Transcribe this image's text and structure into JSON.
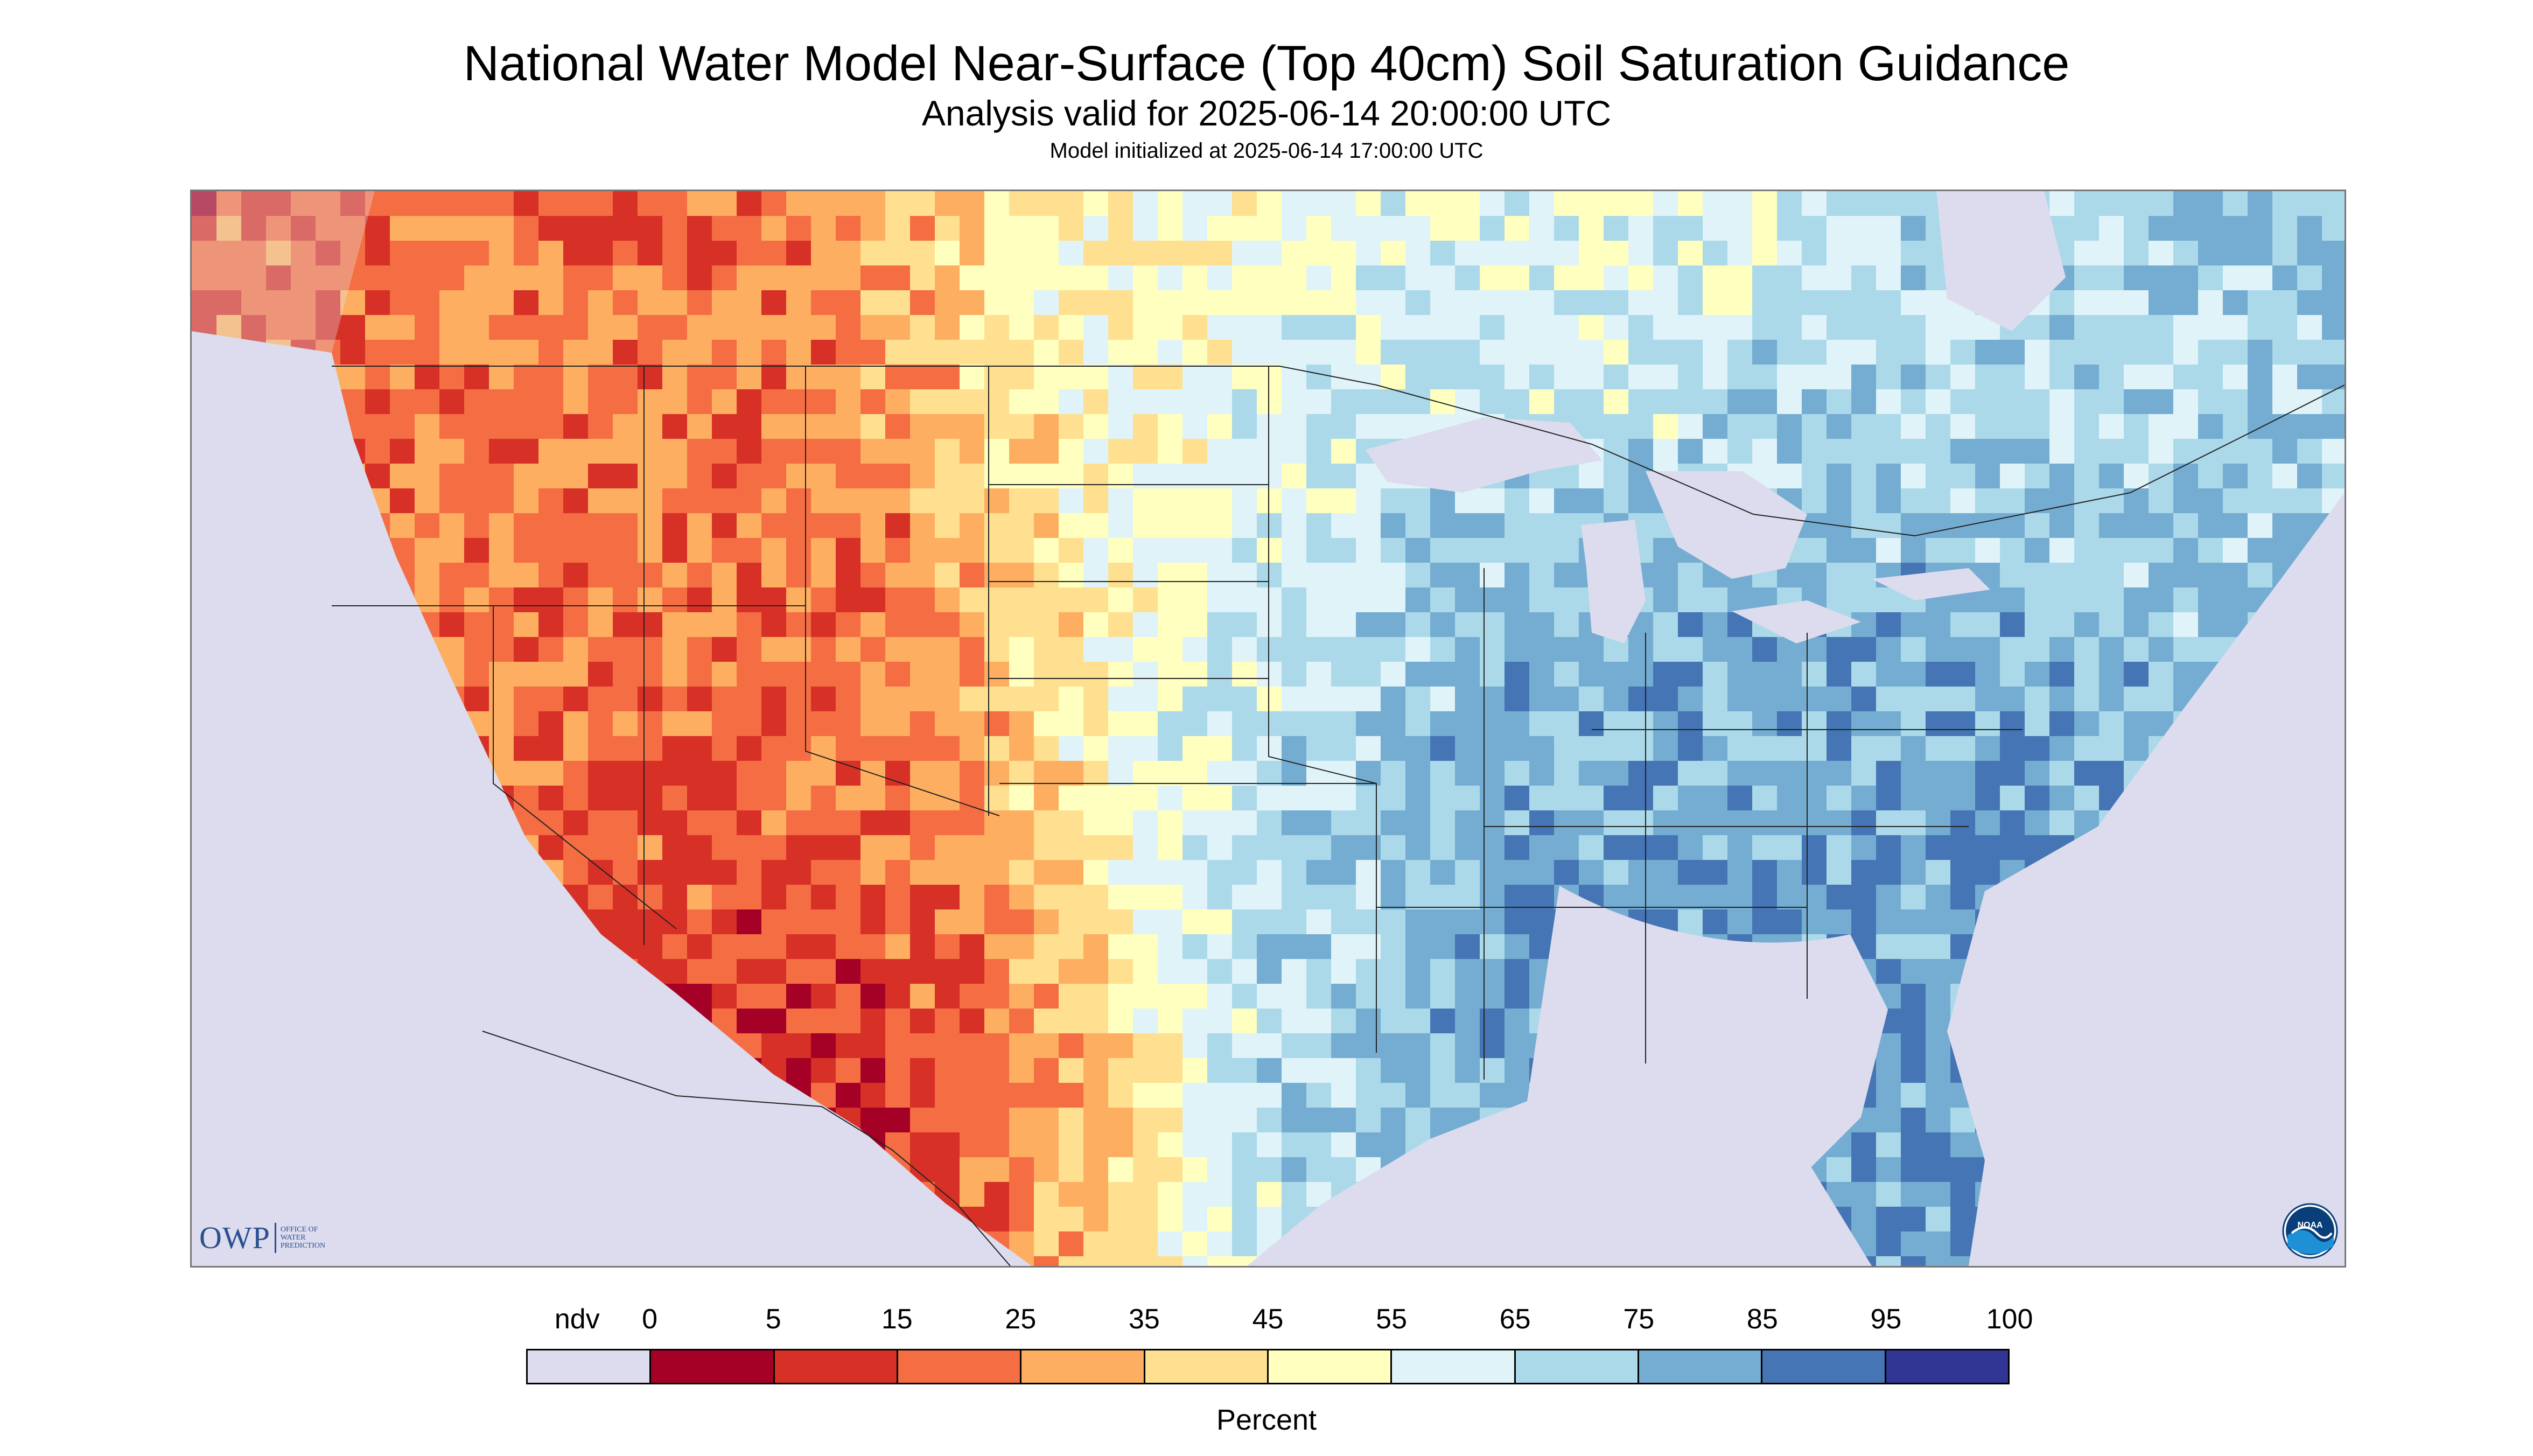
{
  "title": "National Water Model Near-Surface (Top 40cm) Soil Saturation Guidance",
  "subtitle": "Analysis valid for 2025-06-14 20:00:00 UTC",
  "init_line": "Model initialized at 2025-06-14 17:00:00 UTC",
  "logos": {
    "owp_mark": "OWP",
    "owp_text_lines": [
      "OFFICE OF",
      "WATER",
      "PREDICTION"
    ],
    "noaa_text": "NOAA"
  },
  "legend": {
    "unit": "Percent",
    "labels": [
      "ndv",
      "0",
      "5",
      "15",
      "25",
      "35",
      "45",
      "55",
      "65",
      "75",
      "85",
      "95",
      "100"
    ],
    "colors": [
      "#dcdcee",
      "#a50026",
      "#d73027",
      "#f46d43",
      "#fdae61",
      "#fee090",
      "#ffffbf",
      "#e0f3f8",
      "#abd9e9",
      "#74add1",
      "#4575b4",
      "#313695"
    ]
  },
  "map": {
    "background_no_data": "#dcdcee",
    "water_color": "#dcdcee",
    "border_color": "#222222"
  }
}
